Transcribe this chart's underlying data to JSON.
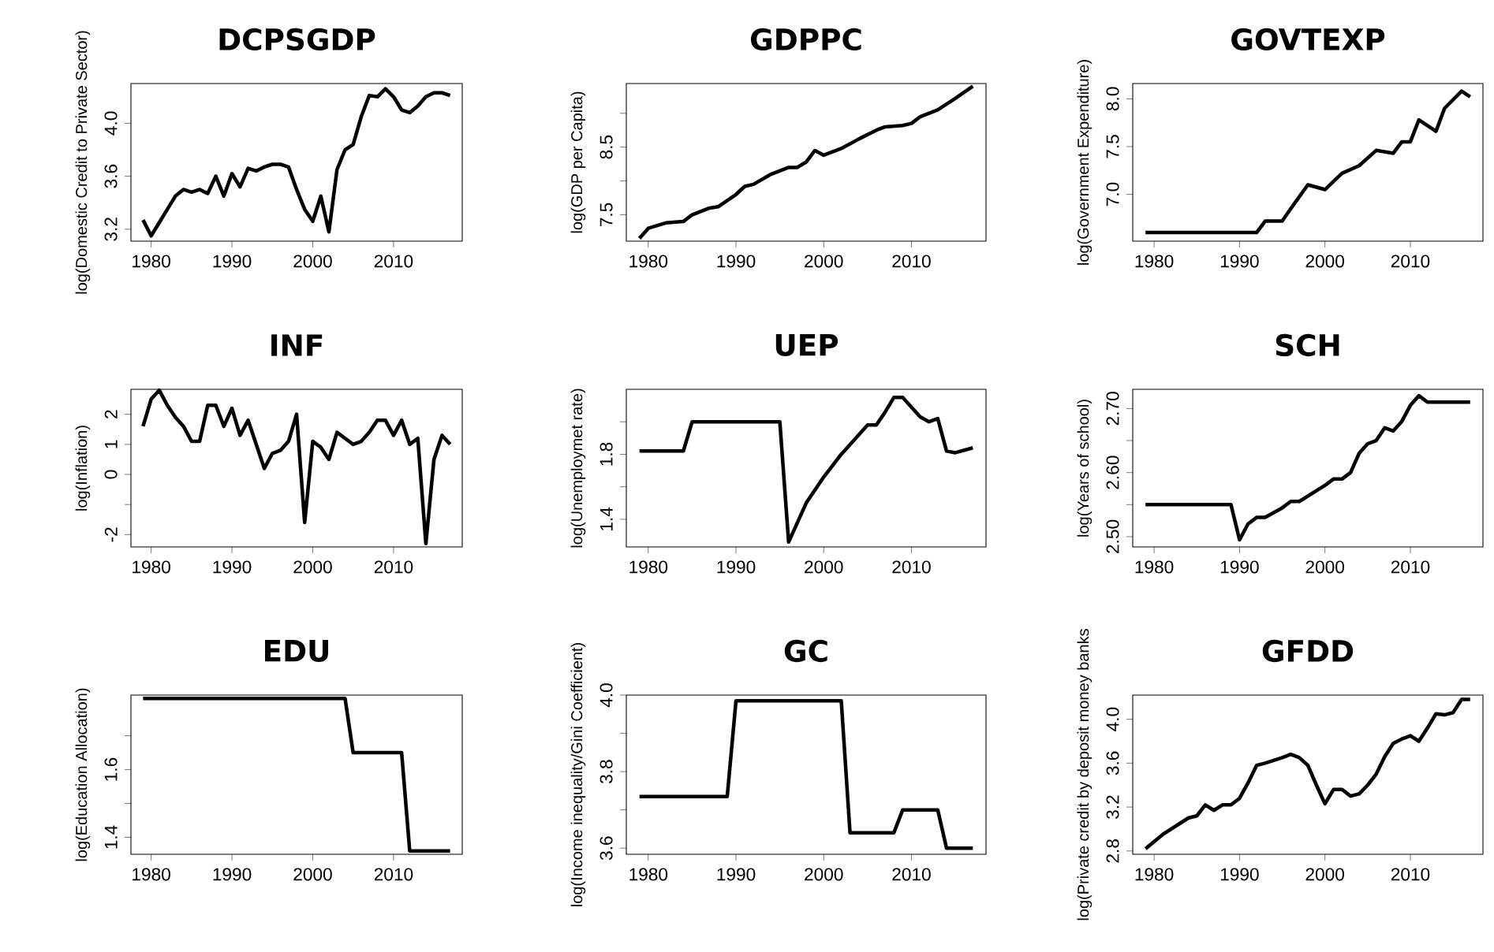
{
  "chart_data": [
    {
      "type": "line",
      "title": "DCPSGDP",
      "ylabel": "log(Domestic Credit to Private Sector)",
      "color": "#000000",
      "xlim": [
        1977.5,
        2018.5
      ],
      "ylim": [
        3.11,
        4.3
      ],
      "xticks": [
        1980,
        1990,
        2000,
        2010
      ],
      "yticks": [
        3.2,
        3.6,
        {
          "value": 4.0,
          "label": "4.0"
        }
      ],
      "x": [
        1979,
        1980,
        1981,
        1982,
        1983,
        1984,
        1985,
        1986,
        1987,
        1988,
        1989,
        1990,
        1991,
        1992,
        1993,
        1994,
        1995,
        1996,
        1997,
        1998,
        1999,
        2000,
        2001,
        2002,
        2003,
        2004,
        2005,
        2006,
        2007,
        2008,
        2009,
        2010,
        2011,
        2012,
        2013,
        2014,
        2015,
        2016,
        2017
      ],
      "values": [
        3.27,
        3.15,
        3.25,
        3.35,
        3.45,
        3.5,
        3.48,
        3.5,
        3.47,
        3.6,
        3.45,
        3.62,
        3.52,
        3.66,
        3.64,
        3.67,
        3.69,
        3.69,
        3.67,
        3.5,
        3.35,
        3.26,
        3.45,
        3.18,
        3.65,
        3.8,
        3.84,
        4.05,
        4.21,
        4.2,
        4.26,
        4.2,
        4.1,
        4.08,
        4.13,
        4.2,
        4.23,
        4.23,
        4.21
      ]
    },
    {
      "type": "line",
      "title": "GDPPC",
      "ylabel": "log(GDP per Capita)",
      "color": "#000000",
      "xlim": [
        1977.5,
        2018.5
      ],
      "ylim": [
        7.11,
        9.44
      ],
      "xticks": [
        1980,
        1990,
        2000,
        2010
      ],
      "yticks": [
        7.5,
        {
          "value": 8.0,
          "label": null
        },
        8.5,
        {
          "value": 9.0,
          "label": null
        }
      ],
      "x": [
        1979,
        1980,
        1982,
        1984,
        1985,
        1987,
        1988,
        1990,
        1991,
        1992,
        1994,
        1996,
        1997,
        1998,
        1999,
        2000,
        2002,
        2004,
        2006,
        2007,
        2009,
        2010,
        2011,
        2013,
        2015,
        2017
      ],
      "values": [
        7.15,
        7.3,
        7.38,
        7.4,
        7.5,
        7.6,
        7.62,
        7.8,
        7.92,
        7.95,
        8.1,
        8.2,
        8.2,
        8.28,
        8.45,
        8.38,
        8.48,
        8.62,
        8.75,
        8.8,
        8.82,
        8.85,
        8.95,
        9.05,
        9.22,
        9.4
      ]
    },
    {
      "type": "line",
      "title": "GOVTEXP",
      "ylabel": "log(Government Expenditure)",
      "color": "#000000",
      "xlim": [
        1977.5,
        2018.5
      ],
      "ylim": [
        6.51,
        8.16
      ],
      "xticks": [
        1980,
        1990,
        2000,
        2010
      ],
      "yticks": [
        {
          "value": 7.0,
          "label": "7.0"
        },
        7.5,
        {
          "value": 8.0,
          "label": "8.0"
        }
      ],
      "x": [
        1979,
        1992,
        1993,
        1995,
        1996,
        1998,
        2000,
        2002,
        2004,
        2006,
        2008,
        2009,
        2010,
        2011,
        2012,
        2013,
        2014,
        2016,
        2017
      ],
      "values": [
        6.6,
        6.6,
        6.72,
        6.72,
        6.85,
        7.1,
        7.05,
        7.22,
        7.3,
        7.46,
        7.43,
        7.55,
        7.55,
        7.78,
        7.72,
        7.66,
        7.9,
        8.08,
        8.02
      ]
    },
    {
      "type": "line",
      "title": "INF",
      "ylabel": "log(Inflation)",
      "color": "#000000",
      "xlim": [
        1977.5,
        2018.5
      ],
      "ylim": [
        -2.41,
        2.83
      ],
      "xticks": [
        1980,
        1990,
        2000,
        2010
      ],
      "yticks": [
        -2,
        {
          "value": -1,
          "label": null
        },
        0,
        1,
        2
      ],
      "x": [
        1979,
        1980,
        1981,
        1982,
        1983,
        1984,
        1985,
        1986,
        1987,
        1988,
        1989,
        1990,
        1991,
        1992,
        1993,
        1994,
        1995,
        1996,
        1997,
        1998,
        1999,
        2000,
        2001,
        2002,
        2003,
        2004,
        2005,
        2006,
        2007,
        2008,
        2009,
        2010,
        2011,
        2012,
        2013,
        2014,
        2015,
        2016,
        2017
      ],
      "values": [
        1.6,
        2.5,
        2.8,
        2.3,
        1.9,
        1.6,
        1.1,
        1.1,
        2.3,
        2.3,
        1.6,
        2.2,
        1.3,
        1.8,
        1.0,
        0.2,
        0.7,
        0.8,
        1.1,
        2.0,
        -1.6,
        1.1,
        0.9,
        0.5,
        1.4,
        1.2,
        1.0,
        1.1,
        1.4,
        1.8,
        1.8,
        1.3,
        1.8,
        1.0,
        1.2,
        -2.3,
        0.5,
        1.3,
        1.0
      ]
    },
    {
      "type": "line",
      "title": "UEP",
      "ylabel": "log(Unemploymet rate)",
      "color": "#000000",
      "xlim": [
        1977.5,
        2018.5
      ],
      "ylim": [
        1.23,
        2.2
      ],
      "xticks": [
        1980,
        1990,
        2000,
        2010
      ],
      "yticks": [
        1.4,
        {
          "value": 1.6,
          "label": null
        },
        1.8,
        {
          "value": 2.0,
          "label": null
        }
      ],
      "x": [
        1979,
        1984,
        1985,
        1995,
        1996,
        1998,
        2000,
        2002,
        2004,
        2005,
        2006,
        2007,
        2008,
        2009,
        2011,
        2012,
        2013,
        2014,
        2015,
        2017
      ],
      "values": [
        1.82,
        1.82,
        2.0,
        2.0,
        1.26,
        1.5,
        1.66,
        1.8,
        1.92,
        1.98,
        1.98,
        2.06,
        2.15,
        2.15,
        2.03,
        2.0,
        2.02,
        1.82,
        1.81,
        1.84
      ]
    },
    {
      "type": "line",
      "title": "SCH",
      "ylabel": "log(Years of school)",
      "color": "#000000",
      "xlim": [
        1977.5,
        2018.5
      ],
      "ylim": [
        2.484,
        2.73
      ],
      "xticks": [
        1980,
        1990,
        2000,
        2010
      ],
      "yticks": [
        {
          "value": 2.5,
          "label": "2.50"
        },
        {
          "value": 2.55,
          "label": null
        },
        {
          "value": 2.6,
          "label": "2.60"
        },
        {
          "value": 2.65,
          "label": null
        },
        {
          "value": 2.7,
          "label": "2.70"
        }
      ],
      "x": [
        1979,
        1989,
        1990,
        1991,
        1992,
        1993,
        1995,
        1996,
        1997,
        2000,
        2001,
        2002,
        2003,
        2004,
        2005,
        2006,
        2007,
        2008,
        2009,
        2010,
        2011,
        2012,
        2017
      ],
      "values": [
        2.55,
        2.55,
        2.495,
        2.52,
        2.53,
        2.53,
        2.545,
        2.555,
        2.555,
        2.58,
        2.59,
        2.59,
        2.6,
        2.63,
        2.645,
        2.65,
        2.67,
        2.665,
        2.68,
        2.705,
        2.72,
        2.71,
        2.71
      ]
    },
    {
      "type": "line",
      "title": "EDU",
      "ylabel": "log(Education Allocation)",
      "color": "#000000",
      "xlim": [
        1977.5,
        2018.5
      ],
      "ylim": [
        1.35,
        1.82
      ],
      "xticks": [
        1980,
        1990,
        2000,
        2010
      ],
      "yticks": [
        1.4,
        {
          "value": 1.5,
          "label": null
        },
        1.6,
        {
          "value": 1.7,
          "label": null
        }
      ],
      "x": [
        1979,
        2004,
        2005,
        2011,
        2012,
        2017
      ],
      "values": [
        1.81,
        1.81,
        1.65,
        1.65,
        1.36,
        1.36
      ]
    },
    {
      "type": "line",
      "title": "GC",
      "ylabel": "log(Income inequality/Gini Coefficient)",
      "color": "#000000",
      "xlim": [
        1977.5,
        2018.5
      ],
      "ylim": [
        3.584,
        4.0
      ],
      "xticks": [
        1980,
        1990,
        2000,
        2010
      ],
      "yticks": [
        3.6,
        {
          "value": 3.7,
          "label": null
        },
        3.8,
        {
          "value": 3.9,
          "label": null
        },
        {
          "value": 4.0,
          "label": "4.0"
        }
      ],
      "x": [
        1979,
        1989,
        1990,
        2002,
        2003,
        2008,
        2009,
        2013,
        2014,
        2017
      ],
      "values": [
        3.735,
        3.735,
        3.985,
        3.985,
        3.64,
        3.64,
        3.7,
        3.7,
        3.6,
        3.6
      ]
    },
    {
      "type": "line",
      "title": "GFDD",
      "ylabel": "log(Private credit by deposit money banks",
      "color": "#000000",
      "xlim": [
        1977.5,
        2018.5
      ],
      "ylim": [
        2.77,
        4.22
      ],
      "xticks": [
        1980,
        1990,
        2000,
        2010
      ],
      "yticks": [
        2.8,
        3.2,
        3.6,
        {
          "value": 4.0,
          "label": "4.0"
        }
      ],
      "x": [
        1979,
        1981,
        1983,
        1984,
        1985,
        1986,
        1987,
        1988,
        1989,
        1990,
        1991,
        1992,
        1993,
        1995,
        1996,
        1997,
        1998,
        1999,
        2000,
        2001,
        2002,
        2003,
        2004,
        2005,
        2006,
        2007,
        2008,
        2009,
        2010,
        2011,
        2012,
        2013,
        2014,
        2015,
        2016,
        2017
      ],
      "values": [
        2.82,
        2.95,
        3.05,
        3.1,
        3.12,
        3.22,
        3.17,
        3.22,
        3.22,
        3.28,
        3.42,
        3.58,
        3.6,
        3.65,
        3.68,
        3.65,
        3.58,
        3.4,
        3.23,
        3.36,
        3.36,
        3.3,
        3.32,
        3.4,
        3.5,
        3.66,
        3.78,
        3.82,
        3.85,
        3.8,
        3.92,
        4.05,
        4.04,
        4.06,
        4.18,
        4.18
      ]
    }
  ]
}
